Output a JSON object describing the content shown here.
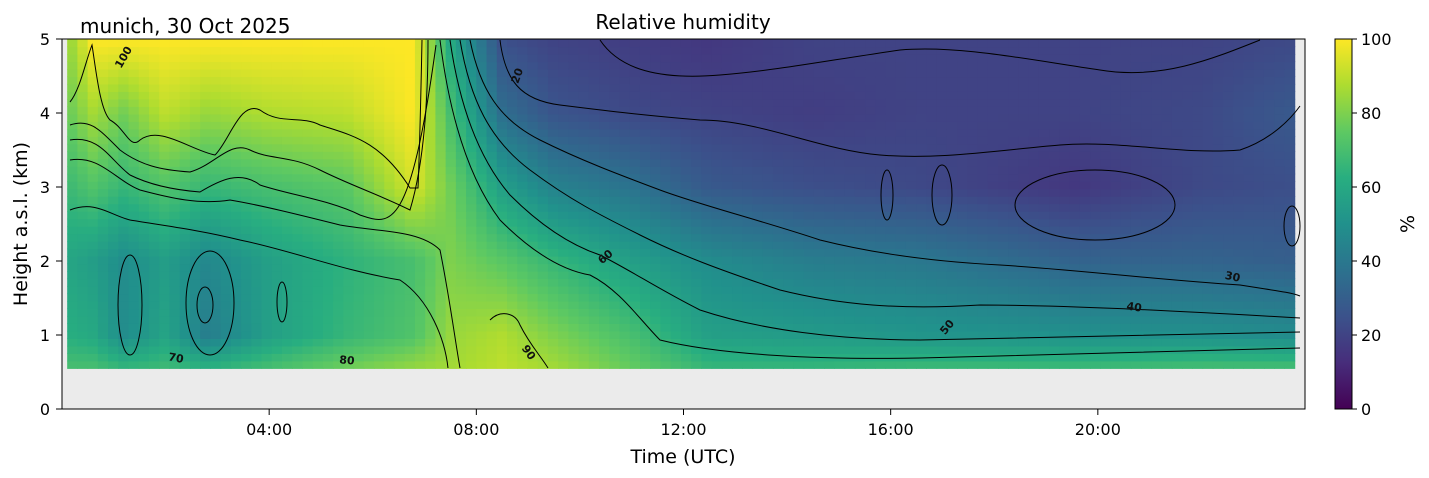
{
  "chart_data": {
    "type": "heatmap",
    "title": "Relative humidity",
    "location_date": "munich, 30 Oct 2025",
    "xlabel": "Time (UTC)",
    "ylabel": "Height a.s.l. (km)",
    "x_range_hours": [
      0,
      24
    ],
    "ylim": [
      0,
      5
    ],
    "data_bottom_km": 0.55,
    "x_ticks": [
      {
        "hour": 4,
        "label": "04:00"
      },
      {
        "hour": 8,
        "label": "08:00"
      },
      {
        "hour": 12,
        "label": "12:00"
      },
      {
        "hour": 16,
        "label": "16:00"
      },
      {
        "hour": 20,
        "label": "20:00"
      }
    ],
    "y_ticks": [
      {
        "value": 0,
        "label": "0"
      },
      {
        "value": 1,
        "label": "1"
      },
      {
        "value": 2,
        "label": "2"
      },
      {
        "value": 3,
        "label": "3"
      },
      {
        "value": 4,
        "label": "4"
      },
      {
        "value": 5,
        "label": "5"
      }
    ],
    "colorbar": {
      "label": "%",
      "range": [
        0,
        100
      ],
      "colormap": "viridis",
      "ticks": [
        {
          "value": 0,
          "label": "0"
        },
        {
          "value": 20,
          "label": "20"
        },
        {
          "value": 40,
          "label": "40"
        },
        {
          "value": 60,
          "label": "60"
        },
        {
          "value": 80,
          "label": "80"
        },
        {
          "value": 100,
          "label": "100"
        }
      ]
    },
    "contour_levels": [
      20,
      30,
      40,
      50,
      60,
      70,
      80,
      90,
      100
    ],
    "contour_labels": [
      {
        "text": "100",
        "hour": 1.2,
        "km": 4.75,
        "angle": -60
      },
      {
        "text": "20",
        "hour": 8.8,
        "km": 4.5,
        "angle": -70
      },
      {
        "text": "60",
        "hour": 10.5,
        "km": 2.05,
        "angle": -40
      },
      {
        "text": "30",
        "hour": 22.6,
        "km": 1.78,
        "angle": 12
      },
      {
        "text": "40",
        "hour": 20.7,
        "km": 1.37,
        "angle": 8
      },
      {
        "text": "50",
        "hour": 17.1,
        "km": 1.1,
        "angle": -50
      },
      {
        "text": "70",
        "hour": 2.2,
        "km": 0.68,
        "angle": 10
      },
      {
        "text": "80",
        "hour": 5.5,
        "km": 0.65,
        "angle": 5
      },
      {
        "text": "90",
        "hour": 9.0,
        "km": 0.76,
        "angle": 55
      }
    ],
    "humidity_profiles": [
      {
        "hour": 0.2,
        "rh_by_km": [
          [
            0.55,
            70
          ],
          [
            1.0,
            62
          ],
          [
            2.0,
            58
          ],
          [
            3.0,
            68
          ],
          [
            4.0,
            78
          ],
          [
            5.0,
            86
          ]
        ]
      },
      {
        "hour": 0.6,
        "rh_by_km": [
          [
            0.55,
            70
          ],
          [
            1.0,
            60
          ],
          [
            2.0,
            55
          ],
          [
            3.0,
            72
          ],
          [
            4.0,
            86
          ],
          [
            5.0,
            100
          ]
        ]
      },
      {
        "hour": 1.2,
        "rh_by_km": [
          [
            0.55,
            66
          ],
          [
            1.0,
            48
          ],
          [
            2.0,
            48
          ],
          [
            3.0,
            66
          ],
          [
            4.0,
            78
          ],
          [
            5.0,
            100
          ]
        ]
      },
      {
        "hour": 2.0,
        "rh_by_km": [
          [
            0.55,
            68
          ],
          [
            1.0,
            58
          ],
          [
            2.0,
            55
          ],
          [
            3.0,
            72
          ],
          [
            4.0,
            90
          ],
          [
            5.0,
            100
          ]
        ]
      },
      {
        "hour": 2.8,
        "rh_by_km": [
          [
            0.55,
            64
          ],
          [
            1.0,
            42
          ],
          [
            2.0,
            46
          ],
          [
            3.0,
            66
          ],
          [
            4.0,
            84
          ],
          [
            5.0,
            100
          ]
        ]
      },
      {
        "hour": 4.0,
        "rh_by_km": [
          [
            0.55,
            70
          ],
          [
            1.0,
            56
          ],
          [
            2.0,
            56
          ],
          [
            3.0,
            70
          ],
          [
            4.0,
            88
          ],
          [
            5.0,
            100
          ]
        ]
      },
      {
        "hour": 5.5,
        "rh_by_km": [
          [
            0.55,
            78
          ],
          [
            1.0,
            66
          ],
          [
            2.0,
            64
          ],
          [
            3.0,
            74
          ],
          [
            4.0,
            90
          ],
          [
            5.0,
            100
          ]
        ]
      },
      {
        "hour": 6.8,
        "rh_by_km": [
          [
            0.55,
            84
          ],
          [
            1.0,
            72
          ],
          [
            2.0,
            70
          ],
          [
            3.0,
            94
          ],
          [
            4.0,
            100
          ],
          [
            5.0,
            100
          ]
        ]
      },
      {
        "hour": 7.5,
        "rh_by_km": [
          [
            0.55,
            86
          ],
          [
            1.0,
            84
          ],
          [
            2.0,
            80
          ],
          [
            3.0,
            78
          ],
          [
            4.0,
            70
          ],
          [
            5.0,
            60
          ]
        ]
      },
      {
        "hour": 8.5,
        "rh_by_km": [
          [
            0.55,
            90
          ],
          [
            1.0,
            88
          ],
          [
            2.0,
            74
          ],
          [
            3.0,
            56
          ],
          [
            4.0,
            36
          ],
          [
            5.0,
            24
          ]
        ]
      },
      {
        "hour": 9.5,
        "rh_by_km": [
          [
            0.55,
            86
          ],
          [
            1.0,
            80
          ],
          [
            2.0,
            66
          ],
          [
            3.0,
            44
          ],
          [
            4.0,
            26
          ],
          [
            5.0,
            20
          ]
        ]
      },
      {
        "hour": 11.0,
        "rh_by_km": [
          [
            0.55,
            76
          ],
          [
            1.0,
            70
          ],
          [
            2.0,
            56
          ],
          [
            3.0,
            38
          ],
          [
            4.0,
            22
          ],
          [
            5.0,
            18
          ]
        ]
      },
      {
        "hour": 12.5,
        "rh_by_km": [
          [
            0.55,
            66
          ],
          [
            1.0,
            56
          ],
          [
            2.0,
            48
          ],
          [
            3.0,
            28
          ],
          [
            4.0,
            20
          ],
          [
            5.0,
            16
          ]
        ]
      },
      {
        "hour": 14.5,
        "rh_by_km": [
          [
            0.55,
            66
          ],
          [
            1.0,
            54
          ],
          [
            2.0,
            42
          ],
          [
            3.0,
            24
          ],
          [
            4.0,
            18
          ],
          [
            5.0,
            20
          ]
        ]
      },
      {
        "hour": 16.5,
        "rh_by_km": [
          [
            0.55,
            68
          ],
          [
            1.0,
            52
          ],
          [
            2.0,
            40
          ],
          [
            3.0,
            22
          ],
          [
            4.0,
            20
          ],
          [
            5.0,
            20
          ]
        ]
      },
      {
        "hour": 19.5,
        "rh_by_km": [
          [
            0.55,
            68
          ],
          [
            1.0,
            50
          ],
          [
            2.0,
            32
          ],
          [
            3.0,
            16
          ],
          [
            4.0,
            20
          ],
          [
            5.0,
            20
          ]
        ]
      },
      {
        "hour": 22.0,
        "rh_by_km": [
          [
            0.55,
            70
          ],
          [
            1.0,
            50
          ],
          [
            2.0,
            32
          ],
          [
            3.0,
            22
          ],
          [
            4.0,
            22
          ],
          [
            5.0,
            20
          ]
        ]
      },
      {
        "hour": 23.8,
        "rh_by_km": [
          [
            0.55,
            70
          ],
          [
            1.0,
            48
          ],
          [
            2.0,
            30
          ],
          [
            3.0,
            24
          ],
          [
            4.0,
            28
          ],
          [
            5.0,
            22
          ]
        ]
      }
    ]
  }
}
